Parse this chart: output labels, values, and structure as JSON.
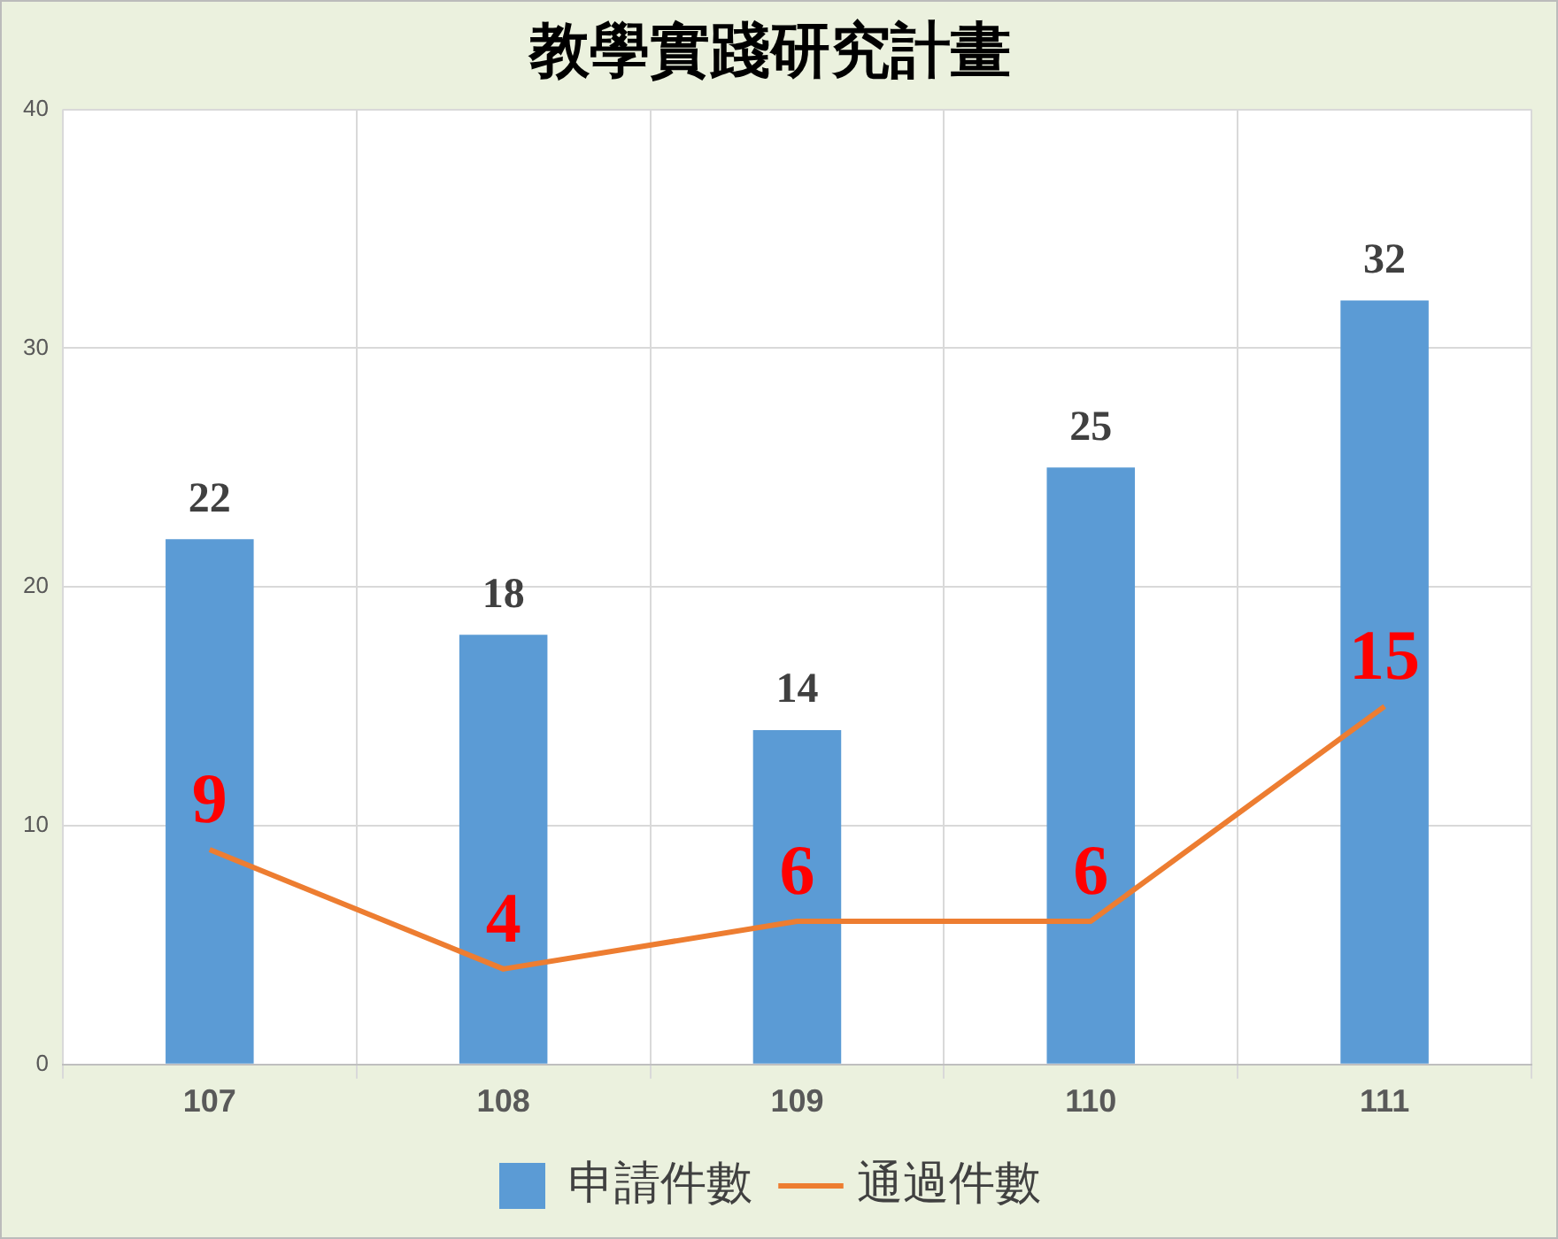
{
  "chart_data": {
    "type": "bar",
    "title": "教學實踐研究計畫",
    "categories": [
      "107",
      "108",
      "109",
      "110",
      "111"
    ],
    "series": [
      {
        "name": "申請件數",
        "color": "#5b9bd5",
        "values": [
          22,
          18,
          14,
          25,
          32
        ]
      },
      {
        "name": "通過件數",
        "type": "line",
        "color": "#ed7d31",
        "values": [
          9,
          4,
          6,
          6,
          15
        ]
      }
    ],
    "ylim": [
      0,
      40
    ],
    "yticks": [
      0,
      10,
      20,
      30,
      40
    ],
    "grid": true,
    "legend": "bottom",
    "data_labels": true,
    "marker": "none",
    "line_style": "solid"
  }
}
